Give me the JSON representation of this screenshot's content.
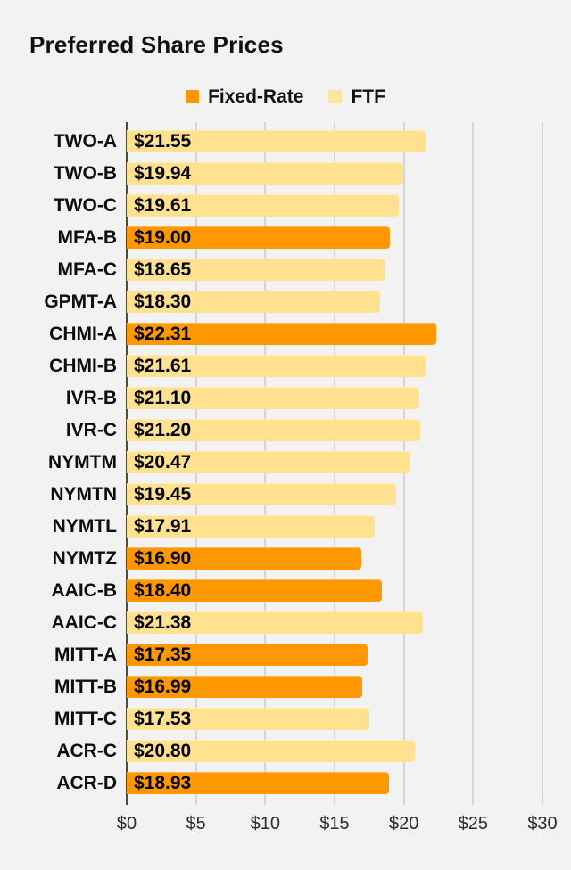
{
  "title": "Preferred Share Prices",
  "colors": {
    "background": "#f2f2f2",
    "fixed_rate": "#FF9800",
    "ftf": "#FFE18F",
    "gridline": "#d5d5d5",
    "zero_line": "#4a4a4a",
    "text": "#0d0d0d"
  },
  "legend": {
    "items": [
      {
        "label": "Fixed-Rate",
        "color": "#FF9800"
      },
      {
        "label": "FTF",
        "color": "#FFE49C"
      }
    ]
  },
  "chart_data": {
    "type": "bar",
    "orientation": "horizontal",
    "title": "Preferred Share Prices",
    "categories": [
      "TWO-A",
      "TWO-B",
      "TWO-C",
      "MFA-B",
      "MFA-C",
      "GPMT-A",
      "CHMI-A",
      "CHMI-B",
      "IVR-B",
      "IVR-C",
      "NYMTM",
      "NYMTN",
      "NYMTL",
      "NYMTZ",
      "AAIC-B",
      "AAIC-C",
      "MITT-A",
      "MITT-B",
      "MITT-C",
      "ACR-C",
      "ACR-D"
    ],
    "values": [
      21.55,
      19.94,
      19.61,
      19.0,
      18.65,
      18.3,
      22.31,
      21.61,
      21.1,
      21.2,
      20.47,
      19.45,
      17.91,
      16.9,
      18.4,
      21.38,
      17.35,
      16.99,
      17.53,
      20.8,
      18.93
    ],
    "bar_series": [
      "FTF",
      "FTF",
      "FTF",
      "Fixed-Rate",
      "FTF",
      "FTF",
      "Fixed-Rate",
      "FTF",
      "FTF",
      "FTF",
      "FTF",
      "FTF",
      "FTF",
      "Fixed-Rate",
      "Fixed-Rate",
      "FTF",
      "Fixed-Rate",
      "Fixed-Rate",
      "FTF",
      "FTF",
      "Fixed-Rate"
    ],
    "data_labels": [
      "$21.55",
      "$19.94",
      "$19.61",
      "$19.00",
      "$18.65",
      "$18.30",
      "$22.31",
      "$21.61",
      "$21.10",
      "$21.20",
      "$20.47",
      "$19.45",
      "$17.91",
      "$16.90",
      "$18.40",
      "$21.38",
      "$17.35",
      "$16.99",
      "$17.53",
      "$20.80",
      "$18.93"
    ],
    "x_ticks": [
      "$0",
      "$5",
      "$10",
      "$15",
      "$20",
      "$25",
      "$30"
    ],
    "xlim": [
      0,
      30
    ],
    "xlabel": "",
    "ylabel": "",
    "grid": "vertical",
    "legend_position": "top-center"
  }
}
